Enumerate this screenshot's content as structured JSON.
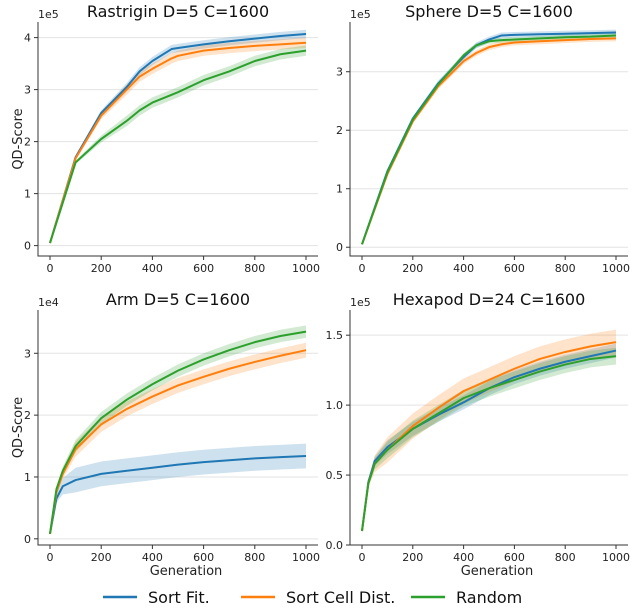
{
  "colors": {
    "sort_fit": "#1f77b4",
    "sort_cell": "#ff7f0e",
    "random": "#2ca02c"
  },
  "legend": [
    {
      "label": "Sort Fit.",
      "color": "#1f77b4"
    },
    {
      "label": "Sort Cell Dist.",
      "color": "#ff7f0e"
    },
    {
      "label": "Random",
      "color": "#2ca02c"
    }
  ],
  "chart_data": [
    {
      "type": "line",
      "title": "Rastrigin D=5 C=1600",
      "xlabel": "",
      "ylabel": "QD-Score",
      "multiplier": "1e5",
      "xlim": [
        0,
        1000
      ],
      "ylim": [
        -0.2,
        4.3
      ],
      "xticks": [
        "0",
        "200",
        "400",
        "600",
        "800",
        "1000"
      ],
      "yticks": [
        "0",
        "1",
        "2",
        "3",
        "4"
      ],
      "x": [
        0,
        100,
        200,
        300,
        350,
        400,
        475,
        500,
        600,
        700,
        800,
        900,
        1000
      ],
      "series": [
        {
          "name": "Sort Fit.",
          "color": "#1f77b4",
          "values": [
            0.05,
            1.7,
            2.55,
            3.05,
            3.35,
            3.55,
            3.78,
            3.8,
            3.87,
            3.93,
            3.98,
            4.03,
            4.07
          ],
          "band": 0.08
        },
        {
          "name": "Sort Cell Dist.",
          "color": "#ff7f0e",
          "values": [
            0.05,
            1.68,
            2.5,
            3.0,
            3.25,
            3.4,
            3.6,
            3.65,
            3.75,
            3.8,
            3.84,
            3.87,
            3.9
          ],
          "band": 0.1
        },
        {
          "name": "Random",
          "color": "#2ca02c",
          "values": [
            0.05,
            1.6,
            2.05,
            2.4,
            2.6,
            2.75,
            2.9,
            2.95,
            3.18,
            3.35,
            3.55,
            3.68,
            3.75
          ],
          "band": 0.1
        }
      ]
    },
    {
      "type": "line",
      "title": "Sphere D=5 C=1600",
      "xlabel": "",
      "ylabel": "",
      "multiplier": "1e5",
      "xlim": [
        0,
        1000
      ],
      "ylim": [
        -0.15,
        3.85
      ],
      "xticks": [
        "0",
        "200",
        "400",
        "600",
        "800",
        "1000"
      ],
      "yticks": [
        "0",
        "1",
        "2",
        "3"
      ],
      "x": [
        0,
        100,
        200,
        300,
        400,
        450,
        500,
        550,
        600,
        700,
        800,
        900,
        1000
      ],
      "series": [
        {
          "name": "Sort Fit.",
          "color": "#1f77b4",
          "values": [
            0.05,
            1.3,
            2.2,
            2.8,
            3.25,
            3.45,
            3.55,
            3.62,
            3.63,
            3.64,
            3.65,
            3.66,
            3.67
          ],
          "band": 0.05
        },
        {
          "name": "Sort Cell Dist.",
          "color": "#ff7f0e",
          "values": [
            0.05,
            1.25,
            2.15,
            2.75,
            3.18,
            3.32,
            3.42,
            3.47,
            3.5,
            3.52,
            3.54,
            3.56,
            3.57
          ],
          "band": 0.05
        },
        {
          "name": "Random",
          "color": "#2ca02c",
          "values": [
            0.05,
            1.28,
            2.18,
            2.78,
            3.28,
            3.45,
            3.52,
            3.54,
            3.55,
            3.57,
            3.59,
            3.6,
            3.62
          ],
          "band": 0.04
        }
      ]
    },
    {
      "type": "line",
      "title": "Arm D=5 C=1600",
      "xlabel": "Generation",
      "ylabel": "QD-Score",
      "multiplier": "1e4",
      "xlim": [
        0,
        1000
      ],
      "ylim": [
        -0.1,
        3.7
      ],
      "xticks": [
        "0",
        "200",
        "400",
        "600",
        "800",
        "1000"
      ],
      "yticks": [
        "0",
        "1",
        "2",
        "3"
      ],
      "x": [
        0,
        25,
        50,
        100,
        200,
        300,
        400,
        500,
        600,
        700,
        800,
        900,
        1000
      ],
      "series": [
        {
          "name": "Sort Fit.",
          "color": "#1f77b4",
          "values": [
            0.08,
            0.65,
            0.85,
            0.95,
            1.05,
            1.1,
            1.15,
            1.2,
            1.24,
            1.27,
            1.3,
            1.32,
            1.34
          ],
          "band": 0.2
        },
        {
          "name": "Sort Cell Dist.",
          "color": "#ff7f0e",
          "values": [
            0.08,
            0.75,
            1.05,
            1.45,
            1.85,
            2.1,
            2.3,
            2.48,
            2.62,
            2.75,
            2.86,
            2.96,
            3.05
          ],
          "band": 0.12
        },
        {
          "name": "Random",
          "color": "#2ca02c",
          "values": [
            0.08,
            0.8,
            1.1,
            1.5,
            1.95,
            2.25,
            2.5,
            2.72,
            2.9,
            3.05,
            3.18,
            3.28,
            3.35
          ],
          "band": 0.1
        }
      ]
    },
    {
      "type": "line",
      "title": "Hexapod D=24 C=1600",
      "xlabel": "Generation",
      "ylabel": "",
      "multiplier": "1e5",
      "xlim": [
        0,
        1000
      ],
      "ylim": [
        0,
        1.68
      ],
      "xticks": [
        "0",
        "200",
        "400",
        "600",
        "800",
        "1000"
      ],
      "yticks": [
        "0.0",
        "0.5",
        "1.0",
        "1.5"
      ],
      "x": [
        0,
        25,
        50,
        100,
        200,
        300,
        400,
        500,
        600,
        700,
        800,
        900,
        1000
      ],
      "series": [
        {
          "name": "Sort Fit.",
          "color": "#1f77b4",
          "values": [
            0.1,
            0.45,
            0.6,
            0.7,
            0.83,
            0.93,
            1.02,
            1.12,
            1.2,
            1.26,
            1.31,
            1.35,
            1.39
          ],
          "band": 0.05
        },
        {
          "name": "Sort Cell Dist.",
          "color": "#ff7f0e",
          "values": [
            0.1,
            0.44,
            0.58,
            0.68,
            0.85,
            0.98,
            1.1,
            1.18,
            1.26,
            1.33,
            1.38,
            1.42,
            1.45
          ],
          "band": 0.09
        },
        {
          "name": "Random",
          "color": "#2ca02c",
          "values": [
            0.1,
            0.44,
            0.58,
            0.68,
            0.83,
            0.94,
            1.05,
            1.12,
            1.18,
            1.24,
            1.29,
            1.33,
            1.35
          ],
          "band": 0.06
        }
      ]
    }
  ]
}
